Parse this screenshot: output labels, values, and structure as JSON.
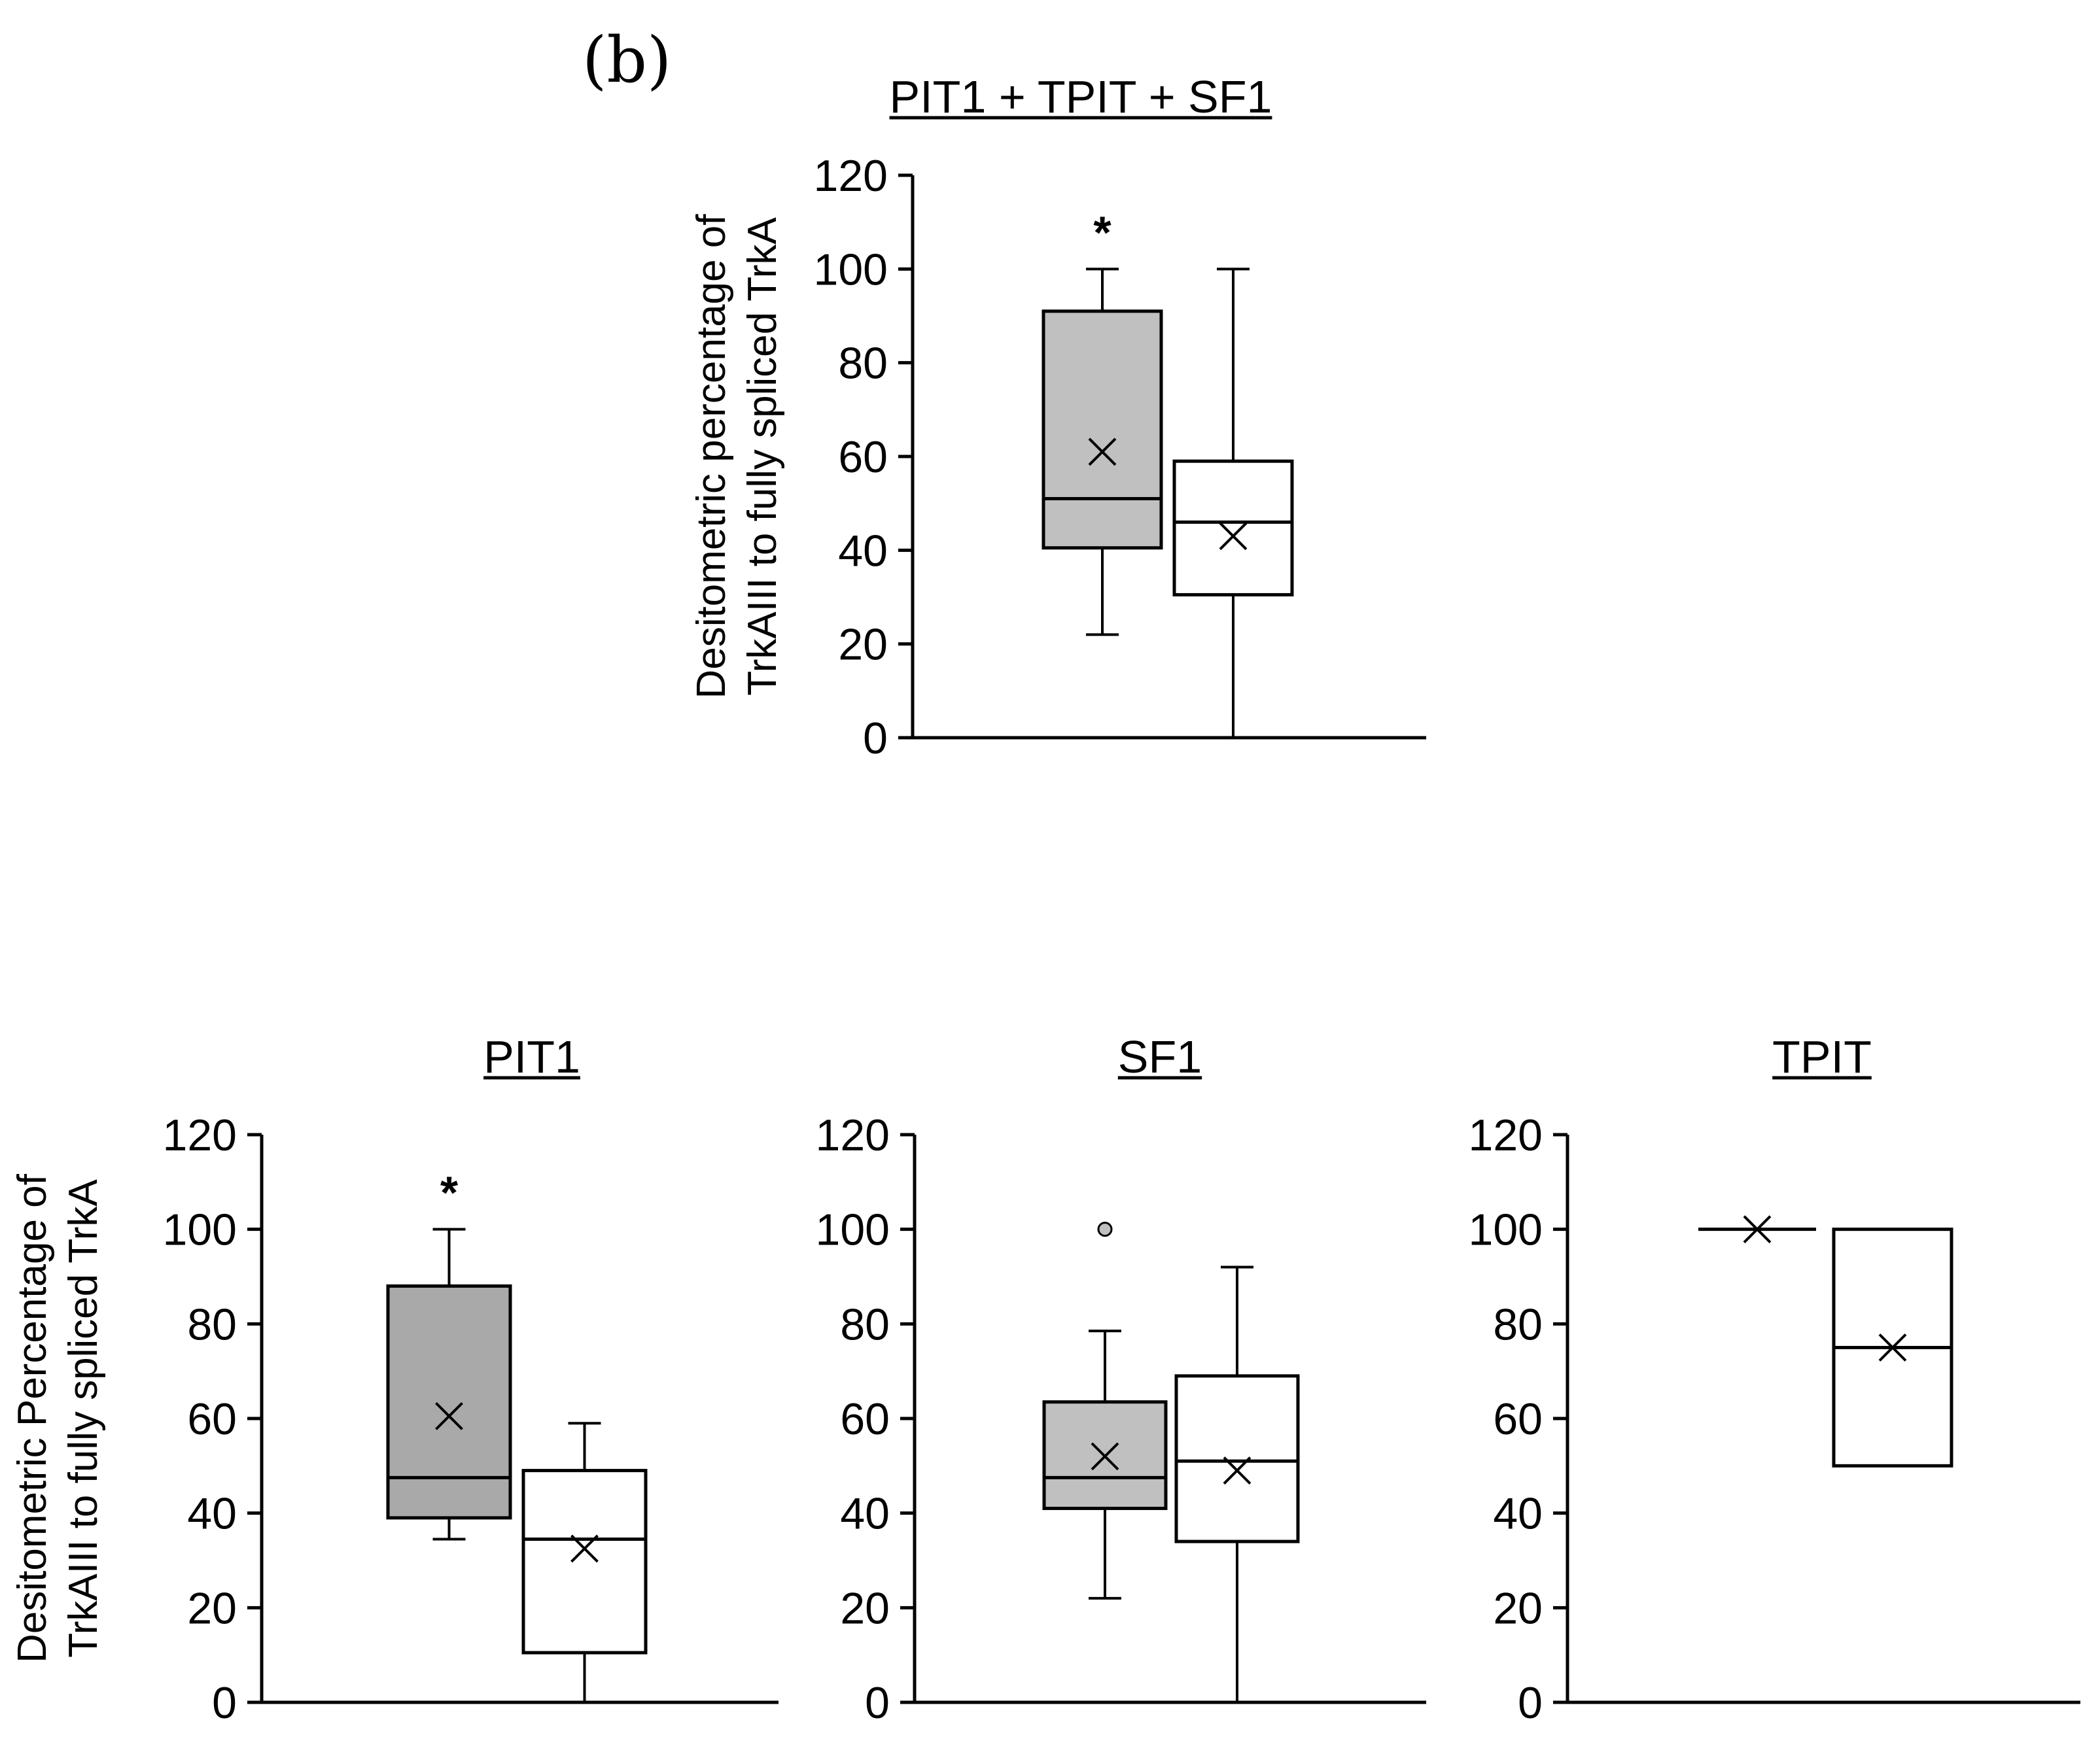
{
  "panel_label": "(b)",
  "chart_data": [
    {
      "type": "box",
      "title": "PIT1 + TPIT + SF1",
      "ylabel_lines": [
        "Desitometric percentage of",
        "TrkAIII to fully spliced TrkA"
      ],
      "ylim": [
        0,
        120
      ],
      "yticks": [
        "0",
        "20",
        "40",
        "60",
        "80",
        "100",
        "120"
      ],
      "boxes": [
        {
          "fill": "#c0c0c0",
          "whisker_low": 22,
          "q1": 40.5,
          "median": 51,
          "q3": 91,
          "whisker_high": 100,
          "mean": 61,
          "outliers": [],
          "significance": "*"
        },
        {
          "fill": "#ffffff",
          "whisker_low": 0,
          "q1": 30.5,
          "median": 46,
          "q3": 59,
          "whisker_high": 100,
          "mean": 43,
          "outliers": [],
          "significance": ""
        }
      ]
    },
    {
      "type": "box",
      "title": "PIT1",
      "ylabel_lines": [
        "Desitometric Percentage of",
        "TrkAIII to  fully spliced TrkA"
      ],
      "ylim": [
        0,
        120
      ],
      "yticks": [
        "0",
        "20",
        "40",
        "60",
        "80",
        "100",
        "120"
      ],
      "boxes": [
        {
          "fill": "#a9a9a9",
          "whisker_low": 34.5,
          "q1": 39,
          "median": 47.5,
          "q3": 88,
          "whisker_high": 100,
          "mean": 60.5,
          "outliers": [],
          "significance": "*"
        },
        {
          "fill": "#ffffff",
          "whisker_low": 0,
          "q1": 10.5,
          "median": 34.5,
          "q3": 49,
          "whisker_high": 59,
          "mean": 32.5,
          "outliers": [],
          "significance": ""
        }
      ]
    },
    {
      "type": "box",
      "title": "SF1",
      "ylabel_lines": [],
      "ylim": [
        0,
        120
      ],
      "yticks": [
        "0",
        "20",
        "40",
        "60",
        "80",
        "100",
        "120"
      ],
      "boxes": [
        {
          "fill": "#c0c0c0",
          "whisker_low": 22,
          "q1": 41,
          "median": 47.5,
          "q3": 63.5,
          "whisker_high": 78.5,
          "mean": 52,
          "outliers": [
            100
          ],
          "significance": ""
        },
        {
          "fill": "#ffffff",
          "whisker_low": 0,
          "q1": 34,
          "median": 51,
          "q3": 69,
          "whisker_high": 92,
          "mean": 49,
          "outliers": [],
          "significance": ""
        }
      ]
    },
    {
      "type": "box",
      "title": "TPIT",
      "ylabel_lines": [],
      "ylim": [
        0,
        120
      ],
      "yticks": [
        "0",
        "20",
        "40",
        "60",
        "80",
        "100",
        "120"
      ],
      "boxes": [
        {
          "fill": "#c0c0c0",
          "whisker_low": 100,
          "q1": 100,
          "median": 100,
          "q3": 100,
          "whisker_high": 100,
          "mean": 100,
          "outliers": [],
          "significance": ""
        },
        {
          "fill": "#ffffff",
          "whisker_low": 50,
          "q1": 50,
          "median": 75,
          "q3": 100,
          "whisker_high": 100,
          "mean": 75,
          "outliers": [],
          "significance": ""
        }
      ]
    }
  ]
}
